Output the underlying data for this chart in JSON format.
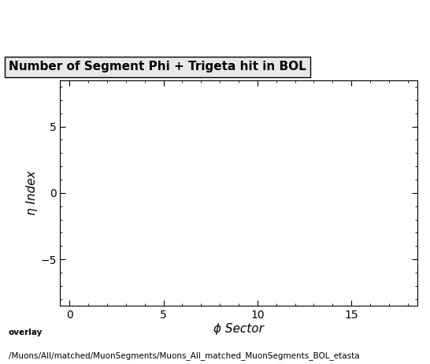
{
  "title": "Number of Segment Phi + Trigeta hit in BOL",
  "xlabel": "ϕ Sector",
  "ylabel": "η Index",
  "xlim": [
    -0.5,
    18.5
  ],
  "ylim": [
    -8.5,
    8.5
  ],
  "xticks": [
    0,
    5,
    10,
    15
  ],
  "yticks": [
    -5,
    0,
    5
  ],
  "background_color": "#ffffff",
  "plot_bg_color": "#ffffff",
  "caption_line1": "overlay",
  "caption_line2": "/Muons/All/matched/MuonSegments/Muons_All_matched_MuonSegments_BOL_etasta",
  "title_fontsize": 11,
  "axis_fontsize": 11,
  "tick_fontsize": 10,
  "caption_fontsize": 7.5
}
